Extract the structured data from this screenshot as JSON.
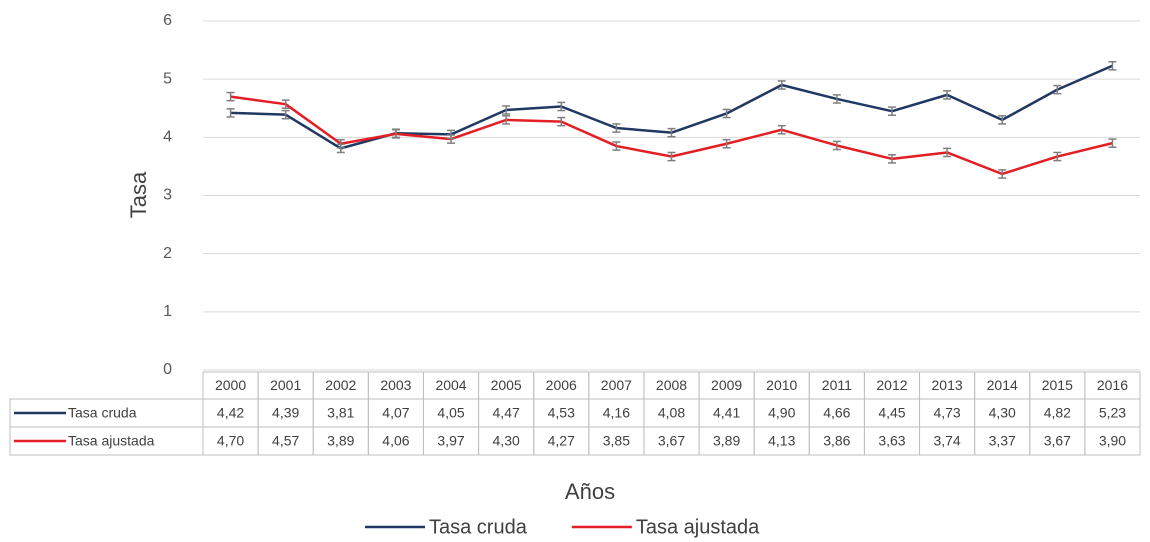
{
  "chart_data": {
    "type": "line",
    "x_label": "Años",
    "y_label": "Tasa",
    "categories": [
      "2000",
      "2001",
      "2002",
      "2003",
      "2004",
      "2005",
      "2006",
      "2007",
      "2008",
      "2009",
      "2010",
      "2011",
      "2012",
      "2013",
      "2014",
      "2015",
      "2016"
    ],
    "series": [
      {
        "name": "Tasa cruda",
        "color": "#203864",
        "values": [
          4.42,
          4.39,
          3.81,
          4.07,
          4.05,
          4.47,
          4.53,
          4.16,
          4.08,
          4.41,
          4.9,
          4.66,
          4.45,
          4.73,
          4.3,
          4.82,
          5.23
        ],
        "value_labels": [
          "4,42",
          "4,39",
          "3,81",
          "4,07",
          "4,05",
          "4,47",
          "4,53",
          "4,16",
          "4,08",
          "4,41",
          "4,90",
          "4,66",
          "4,45",
          "4,73",
          "4,30",
          "4,82",
          "5,23"
        ],
        "errors": [
          0.07,
          0.07,
          0.07,
          0.07,
          0.07,
          0.07,
          0.07,
          0.07,
          0.07,
          0.07,
          0.07,
          0.07,
          0.07,
          0.07,
          0.07,
          0.07,
          0.07
        ]
      },
      {
        "name": "Tasa ajustada",
        "color": "#e31e24",
        "values": [
          4.7,
          4.57,
          3.89,
          4.06,
          3.97,
          4.3,
          4.27,
          3.85,
          3.67,
          3.89,
          4.13,
          3.86,
          3.63,
          3.74,
          3.37,
          3.67,
          3.9
        ],
        "value_labels": [
          "4,70",
          "4,57",
          "3,89",
          "4,06",
          "3,97",
          "4,30",
          "4,27",
          "3,85",
          "3,67",
          "3,89",
          "4,13",
          "3,86",
          "3,63",
          "3,74",
          "3,37",
          "3,67",
          "3,90"
        ],
        "errors": [
          0.07,
          0.07,
          0.07,
          0.07,
          0.07,
          0.07,
          0.07,
          0.07,
          0.07,
          0.07,
          0.07,
          0.07,
          0.07,
          0.07,
          0.07,
          0.07,
          0.07
        ]
      }
    ],
    "ylim": [
      0,
      6
    ],
    "yticks": [
      0,
      1,
      2,
      3,
      4,
      5,
      6
    ],
    "grid": true,
    "error_bar_color": "#7f7f7f"
  }
}
